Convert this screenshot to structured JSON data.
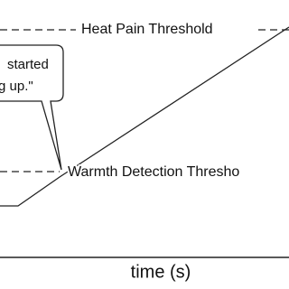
{
  "labels": {
    "heat_pain": "Heat Pain Threshold",
    "bubble_line1": "started",
    "bubble_line2": "g up.\"",
    "warmth": "Warmth Detection Thresho",
    "x_axis": "time (s)"
  }
}
